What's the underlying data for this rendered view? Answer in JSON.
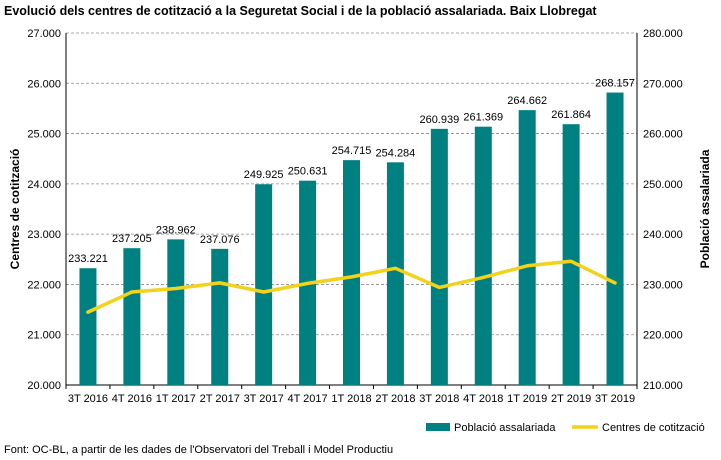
{
  "title": "Evolució dels centres de cotització a la Seguretat Social i de la població assalariada. Baix Llobregat",
  "source": "Font: OC-BL, a partir de les dades de l'Observatori del Treball i Model Productiu",
  "colors": {
    "bars": "#008080",
    "line": "#f2d21b",
    "grid": "#8c8c8c"
  },
  "chart_data": {
    "type": "bar",
    "categories": [
      "3T 2016",
      "4T 2016",
      "1T 2017",
      "2T 2017",
      "3T 2017",
      "4T 2017",
      "1T 2018",
      "2T 2018",
      "3T 2018",
      "4T 2018",
      "1T 2019",
      "2T 2019",
      "3T 2019"
    ],
    "series": [
      {
        "name": "Població assalariada",
        "type": "bar",
        "axis": "right",
        "values": [
          233221,
          237205,
          238962,
          237076,
          249925,
          250631,
          254715,
          254284,
          260939,
          261369,
          264662,
          261864,
          268157
        ],
        "labels": [
          "233.221",
          "237.205",
          "238.962",
          "237.076",
          "249.925",
          "250.631",
          "254.715",
          "254.284",
          "260.939",
          "261.369",
          "264.662",
          "261.864",
          "268.157"
        ]
      },
      {
        "name": "Centres de cotització",
        "type": "line",
        "axis": "left",
        "values": [
          21450,
          21850,
          21920,
          22030,
          21850,
          22020,
          22150,
          22320,
          21940,
          22140,
          22370,
          22460,
          22030
        ]
      }
    ],
    "y_left": {
      "label": "Centres de cotització",
      "min": 20000,
      "max": 27000,
      "ticks": [
        20000,
        21000,
        22000,
        23000,
        24000,
        25000,
        26000,
        27000
      ],
      "tick_labels": [
        "20.000",
        "21.000",
        "22.000",
        "23.000",
        "24.000",
        "25.000",
        "26.000",
        "27.000"
      ]
    },
    "y_right": {
      "label": "Població assalariada",
      "min": 210000,
      "max": 280000,
      "ticks": [
        210000,
        220000,
        230000,
        240000,
        250000,
        260000,
        270000,
        280000
      ],
      "tick_labels": [
        "210.000",
        "220.000",
        "230.000",
        "240.000",
        "250.000",
        "260.000",
        "270.000",
        "280.000"
      ]
    },
    "grid": true,
    "legend": {
      "position": "bottom-right",
      "items": [
        "Població assalariada",
        "Centres de cotització"
      ]
    }
  }
}
